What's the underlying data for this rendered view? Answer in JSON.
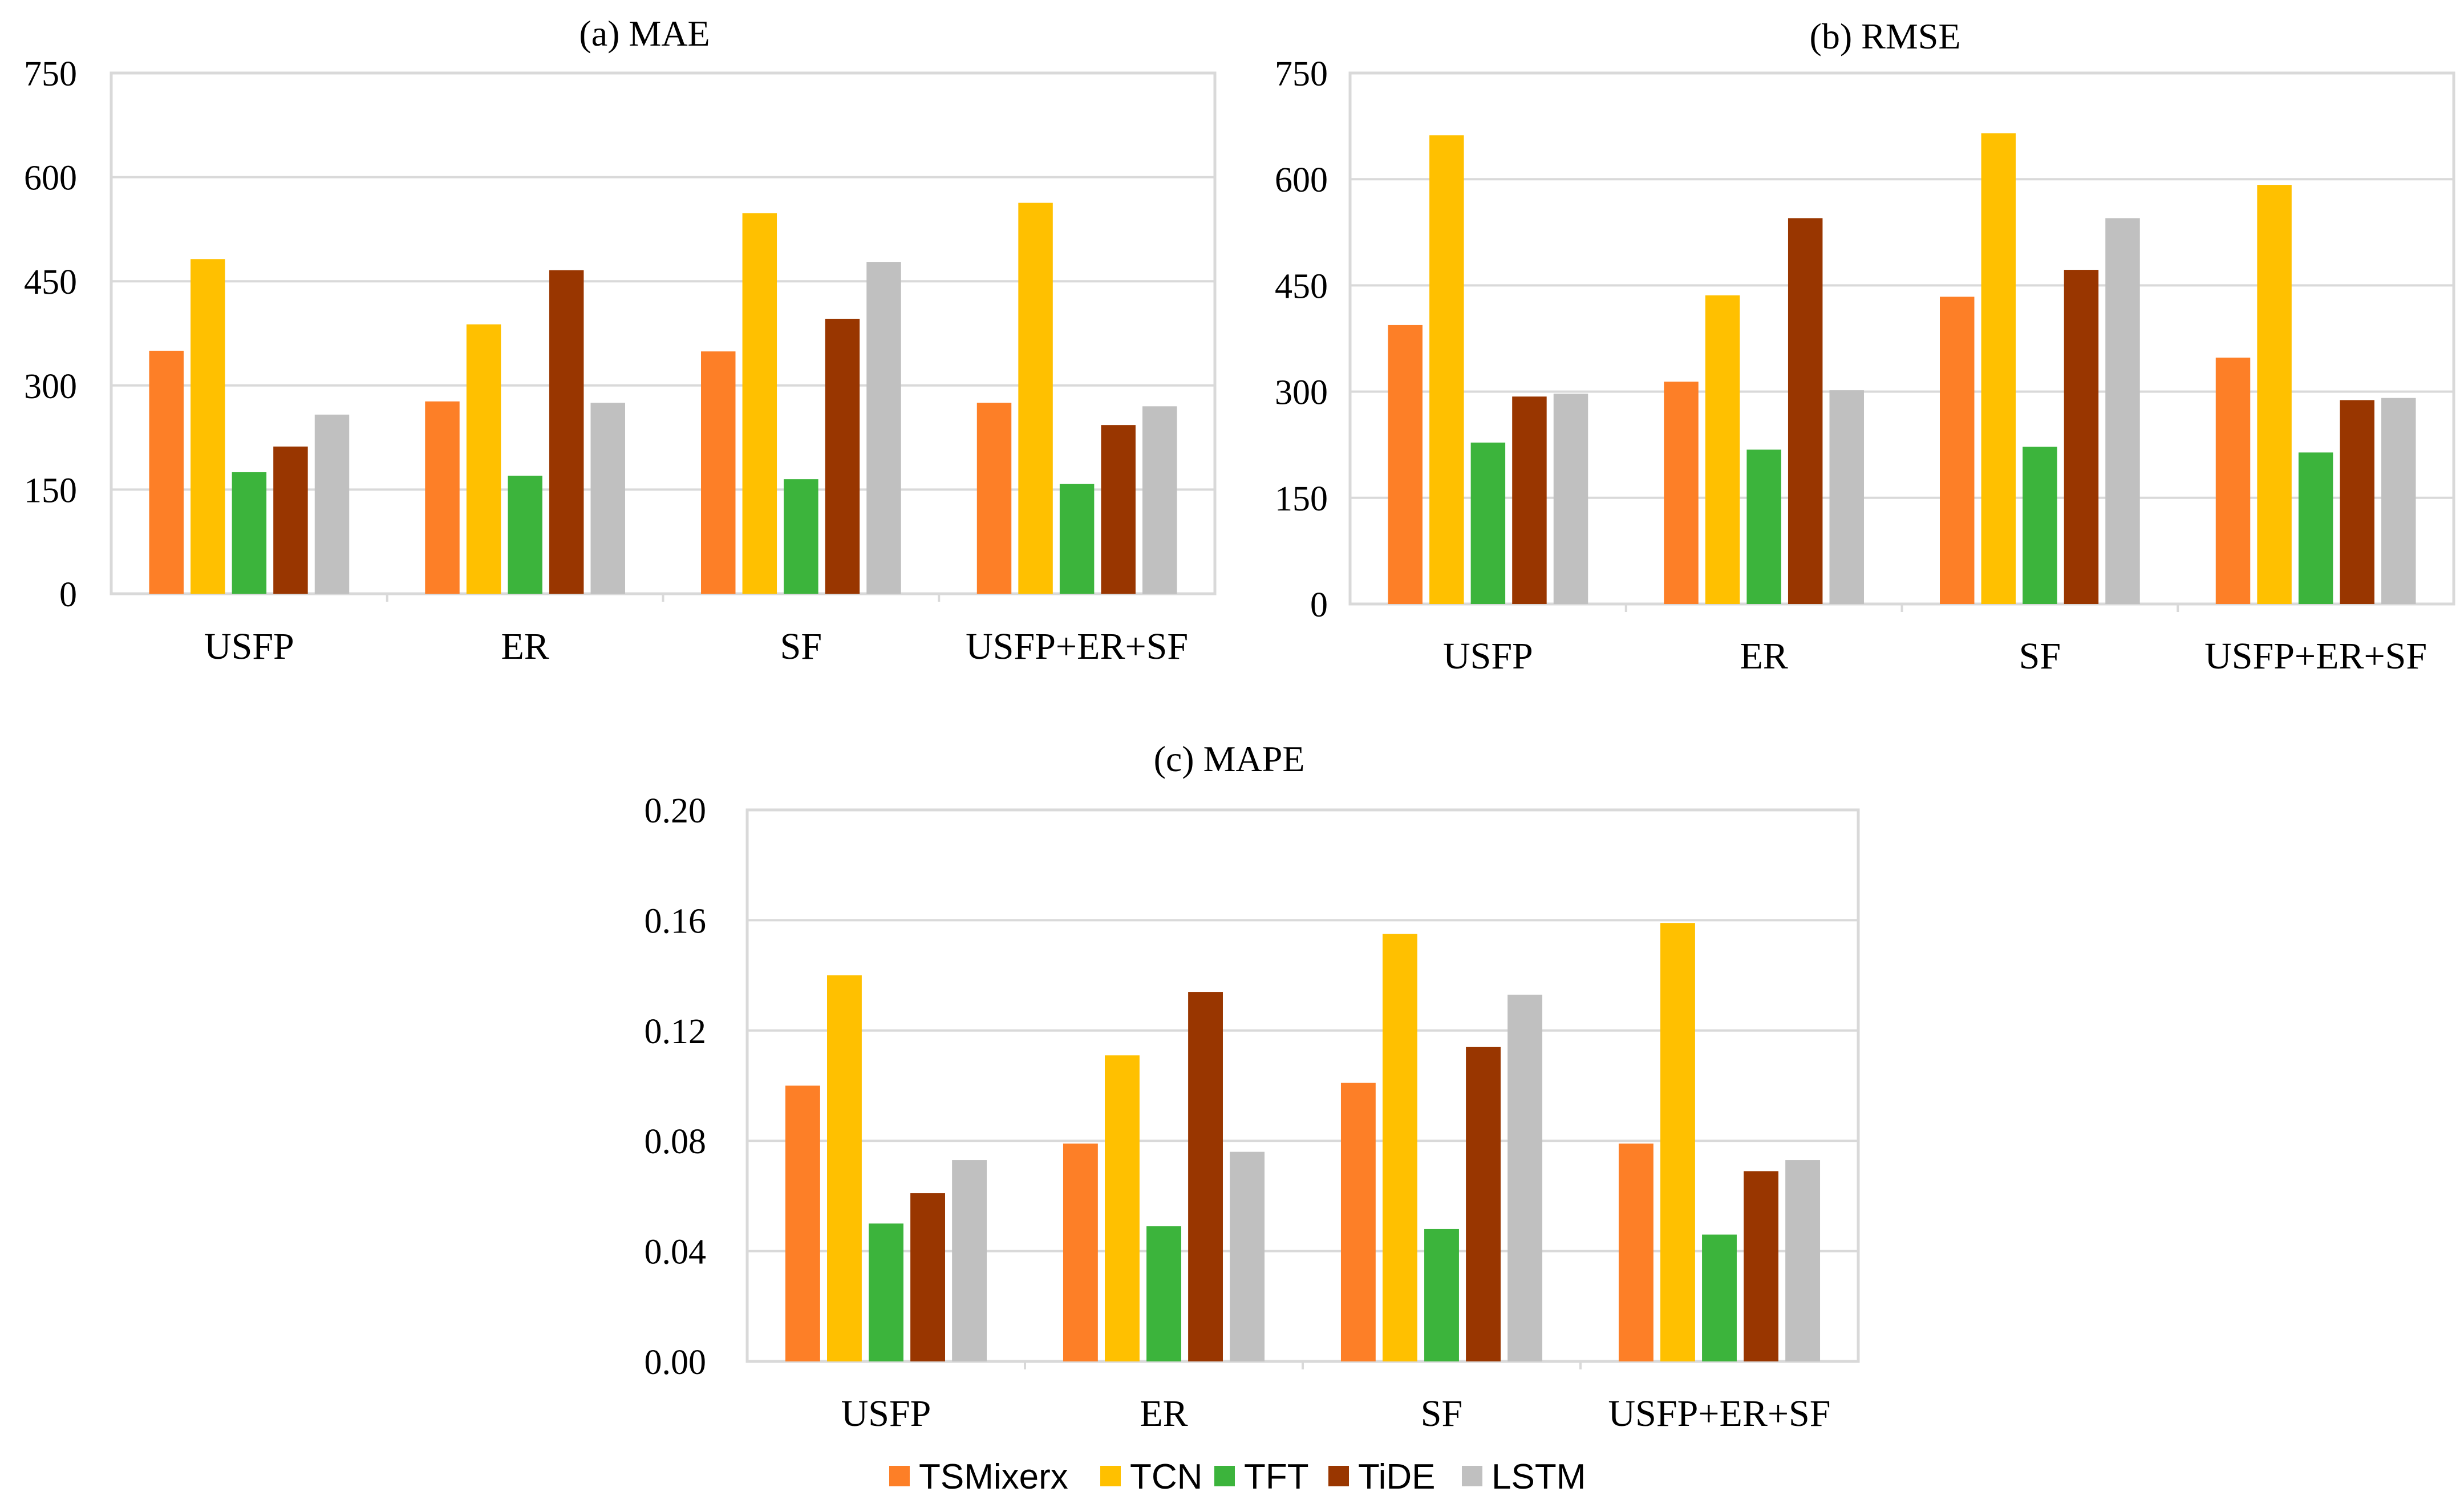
{
  "chart_data": [
    {
      "type": "bar",
      "title": "(a) MAE",
      "categories": [
        "USFP",
        "ER",
        "SF",
        "USFP+ER+SF"
      ],
      "yticks": [
        "0",
        "150",
        "300",
        "450",
        "600",
        "750"
      ],
      "ylim": [
        0,
        750
      ],
      "series": [
        {
          "name": "TSMixerx",
          "values": [
            350,
            277,
            349,
            275
          ]
        },
        {
          "name": "TCN",
          "values": [
            482,
            388,
            548,
            563
          ]
        },
        {
          "name": "TFT",
          "values": [
            175,
            170,
            165,
            158
          ]
        },
        {
          "name": "TiDE",
          "values": [
            212,
            466,
            396,
            243
          ]
        },
        {
          "name": "LSTM",
          "values": [
            258,
            275,
            478,
            270
          ]
        }
      ]
    },
    {
      "type": "bar",
      "title": "(b) RMSE",
      "categories": [
        "USFP",
        "ER",
        "SF",
        "USFP+ER+SF"
      ],
      "yticks": [
        "0",
        "150",
        "300",
        "450",
        "600",
        "750"
      ],
      "ylim": [
        0,
        750
      ],
      "series": [
        {
          "name": "TSMixerx",
          "values": [
            394,
            314,
            434,
            348
          ]
        },
        {
          "name": "TCN",
          "values": [
            662,
            436,
            665,
            592
          ]
        },
        {
          "name": "TFT",
          "values": [
            228,
            218,
            222,
            214
          ]
        },
        {
          "name": "TiDE",
          "values": [
            293,
            545,
            472,
            288
          ]
        },
        {
          "name": "LSTM",
          "values": [
            297,
            302,
            545,
            291
          ]
        }
      ]
    },
    {
      "type": "bar",
      "title": "(c) MAPE",
      "categories": [
        "USFP",
        "ER",
        "SF",
        "USFP+ER+SF"
      ],
      "yticks": [
        "0.00",
        "0.04",
        "0.08",
        "0.12",
        "0.16",
        "0.20"
      ],
      "ylim": [
        0,
        0.2
      ],
      "series": [
        {
          "name": "TSMixerx",
          "values": [
            0.1,
            0.079,
            0.101,
            0.079
          ]
        },
        {
          "name": "TCN",
          "values": [
            0.14,
            0.111,
            0.155,
            0.159
          ]
        },
        {
          "name": "TFT",
          "values": [
            0.05,
            0.049,
            0.048,
            0.046
          ]
        },
        {
          "name": "TiDE",
          "values": [
            0.061,
            0.134,
            0.114,
            0.069
          ]
        },
        {
          "name": "LSTM",
          "values": [
            0.073,
            0.076,
            0.133,
            0.073
          ]
        }
      ]
    }
  ],
  "legend": {
    "position": "bottom",
    "items": [
      {
        "label": "TSMixerx",
        "color": "#fd7f27"
      },
      {
        "label": "TCN",
        "color": "#ffc000"
      },
      {
        "label": "TFT",
        "color": "#3cb43c"
      },
      {
        "label": "TiDE",
        "color": "#993600"
      },
      {
        "label": "LSTM",
        "color": "#c0c0c0"
      }
    ]
  }
}
